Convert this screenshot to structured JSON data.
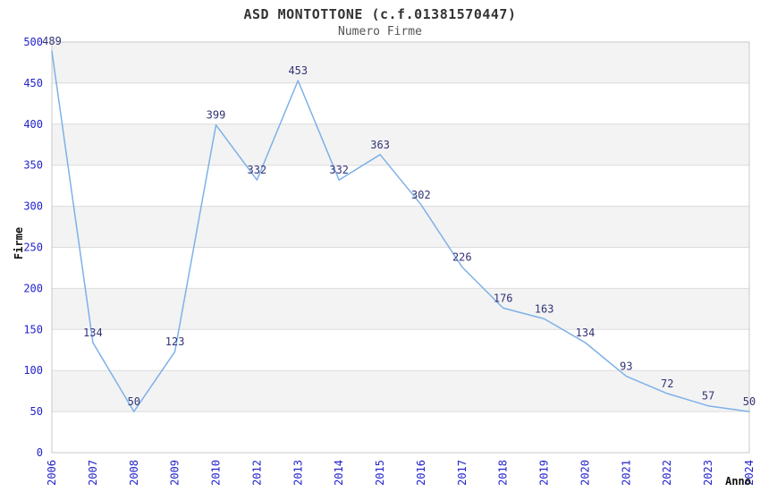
{
  "chart_data": {
    "type": "line",
    "title": "ASD MONTOTTONE (c.f.01381570447)",
    "subtitle": "Numero Firme",
    "xlabel": "Anno",
    "ylabel": "Firme",
    "categories": [
      "2006",
      "2007",
      "2008",
      "2009",
      "2010",
      "2012",
      "2013",
      "2014",
      "2015",
      "2016",
      "2017",
      "2018",
      "2019",
      "2020",
      "2021",
      "2022",
      "2023",
      "2024"
    ],
    "values": [
      489,
      134,
      50,
      123,
      399,
      332,
      453,
      332,
      363,
      302,
      226,
      176,
      163,
      134,
      93,
      72,
      57,
      50
    ],
    "ylim": [
      0,
      500
    ],
    "ytick_step": 50,
    "grid": "horizontal-bands",
    "legend": "none",
    "data_labels": "on",
    "colors": {
      "line": "#7db1e8",
      "data_label": "#333377",
      "tick_label": "#2222cc",
      "band": "#f3f3f3",
      "gridline": "#dcdcdc",
      "frame": "#c9c9c9",
      "title": "#333333",
      "subtitle": "#555555",
      "axis_title": "#111111",
      "background": "#ffffff"
    }
  }
}
